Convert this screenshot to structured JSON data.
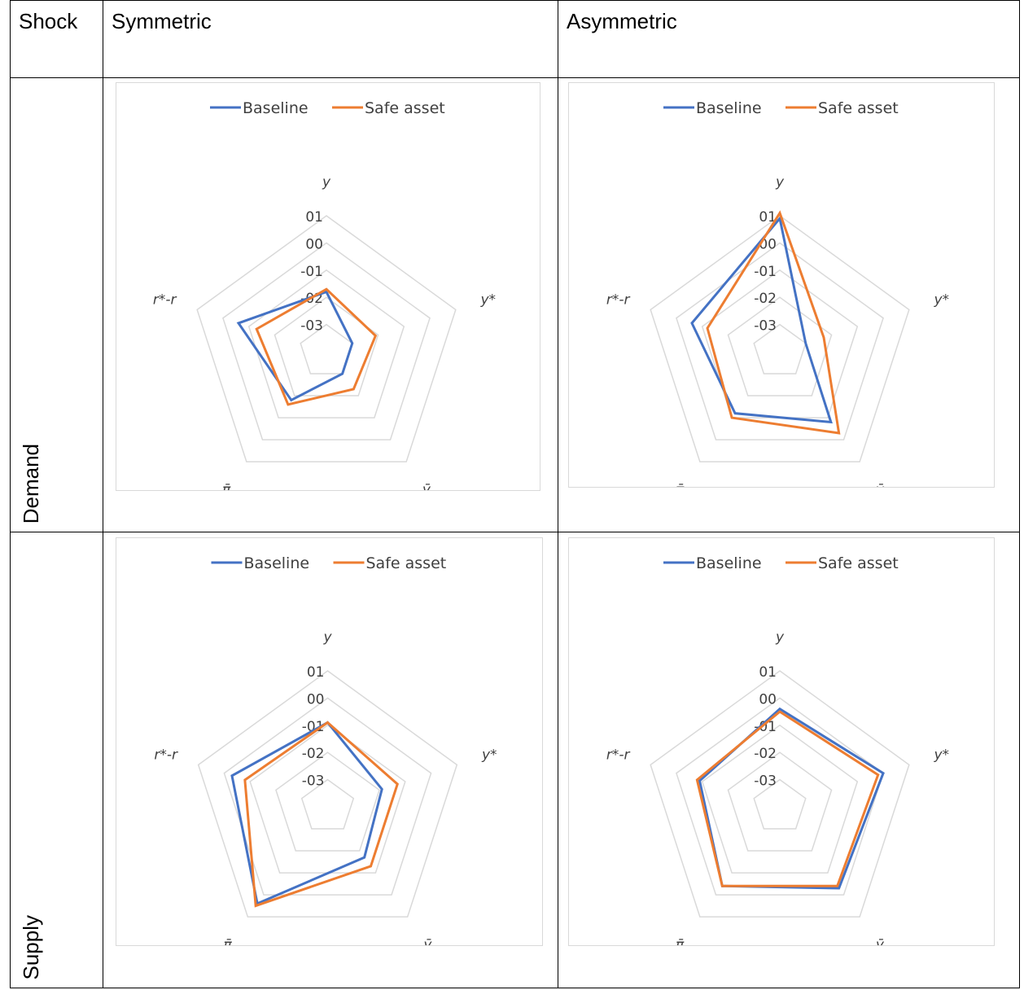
{
  "table": {
    "headers": [
      "Shock",
      "Symmetric",
      "Asymmetric"
    ],
    "rows": [
      "Demand",
      "Supply"
    ]
  },
  "colors": {
    "baseline": "#4472C4",
    "safe_asset": "#ED7D31",
    "grid": "#d9d9d9"
  },
  "chart_data": [
    {
      "type": "radar",
      "panel": "Demand / Symmetric",
      "axes": [
        "y",
        "y*",
        "ȳ",
        "π̄",
        "r*-r"
      ],
      "ticks": [
        "01",
        "00",
        "-01",
        "-02",
        "-03"
      ],
      "rlim": [
        -4,
        1
      ],
      "legend": "top",
      "series": [
        {
          "name": "Baseline",
          "values": [
            -1.8,
            -3.0,
            -3.0,
            -1.8,
            -0.6
          ]
        },
        {
          "name": "Safe asset",
          "values": [
            -1.7,
            -2.1,
            -2.3,
            -1.6,
            -1.3
          ]
        }
      ]
    },
    {
      "type": "radar",
      "panel": "Demand / Asymmetric",
      "axes": [
        "y",
        "y*",
        "ȳ",
        "π̄",
        "r*-r"
      ],
      "ticks": [
        "01",
        "00",
        "-01",
        "-02",
        "-03"
      ],
      "rlim": [
        -4,
        1
      ],
      "legend": "top",
      "series": [
        {
          "name": "Baseline",
          "values": [
            0.9,
            -3.0,
            -0.8,
            -1.2,
            -0.6
          ]
        },
        {
          "name": "Safe asset",
          "values": [
            1.1,
            -2.3,
            -0.3,
            -1.0,
            -1.2
          ]
        }
      ]
    },
    {
      "type": "radar",
      "panel": "Supply / Symmetric",
      "axes": [
        "y",
        "y*",
        "ȳ",
        "π̄",
        "r*-r"
      ],
      "ticks": [
        "01",
        "00",
        "-01",
        "-02",
        "-03"
      ],
      "rlim": [
        -4,
        1
      ],
      "legend": "top",
      "series": [
        {
          "name": "Baseline",
          "values": [
            -0.9,
            -1.9,
            -1.7,
            0.4,
            -0.3
          ]
        },
        {
          "name": "Safe asset",
          "values": [
            -0.9,
            -1.3,
            -1.3,
            0.5,
            -0.8
          ]
        }
      ]
    },
    {
      "type": "radar",
      "panel": "Supply / Asymmetric",
      "axes": [
        "y",
        "y*",
        "ȳ",
        "π̄",
        "r*-r"
      ],
      "ticks": [
        "01",
        "00",
        "-01",
        "-02",
        "-03"
      ],
      "rlim": [
        -4,
        1
      ],
      "legend": "top",
      "series": [
        {
          "name": "Baseline",
          "values": [
            -0.4,
            0.0,
            -0.3,
            -0.4,
            -0.9
          ]
        },
        {
          "name": "Safe asset",
          "values": [
            -0.5,
            -0.2,
            -0.4,
            -0.4,
            -0.8
          ]
        }
      ]
    }
  ]
}
